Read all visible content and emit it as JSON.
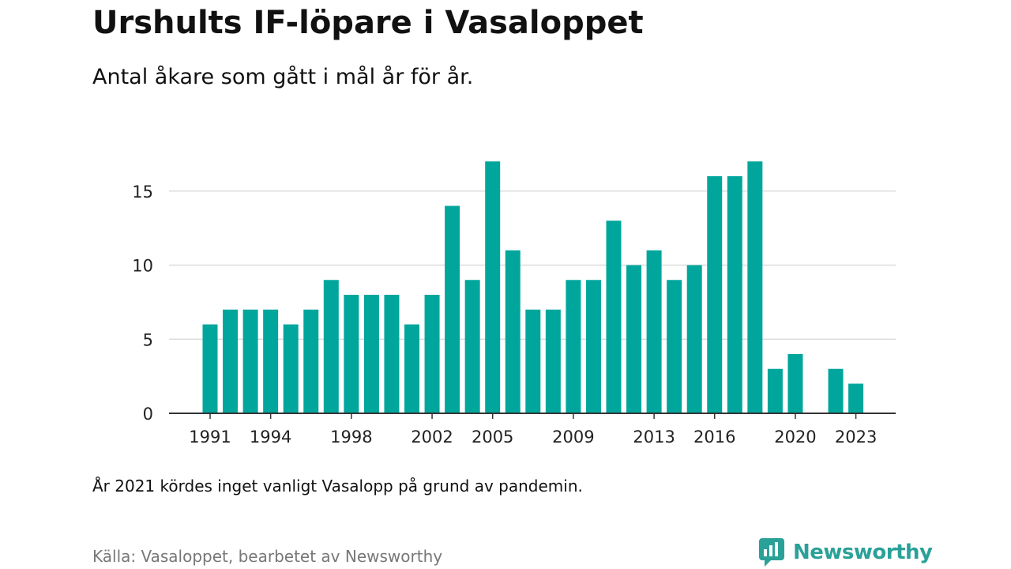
{
  "title": "Urshults IF-löpare i Vasaloppet",
  "subtitle": "Antal åkare som gått i mål år för år.",
  "note": "År 2021 kördes inget vanligt Vasalopp på grund av pandemin.",
  "source": "Källa: Vasaloppet, bearbetet av Newsworthy",
  "brand": {
    "name": "Newsworthy",
    "color": "#2aa198",
    "icon": "newsworthy-logo-icon"
  },
  "colors": {
    "bar": "#00a69c",
    "grid": "#dddddd",
    "axis": "#333333"
  },
  "chart_data": {
    "type": "bar",
    "categories": [
      1991,
      1992,
      1993,
      1994,
      1995,
      1996,
      1997,
      1998,
      1999,
      2000,
      2001,
      2002,
      2003,
      2004,
      2005,
      2006,
      2007,
      2008,
      2009,
      2010,
      2011,
      2012,
      2013,
      2014,
      2015,
      2016,
      2017,
      2018,
      2019,
      2020,
      2021,
      2022,
      2023
    ],
    "values": [
      6,
      7,
      7,
      7,
      6,
      7,
      9,
      8,
      8,
      8,
      6,
      8,
      14,
      9,
      17,
      11,
      7,
      7,
      9,
      9,
      13,
      10,
      11,
      9,
      10,
      16,
      16,
      17,
      3,
      4,
      0,
      3,
      2
    ],
    "x_tick_labels": [
      "1991",
      "1994",
      "1998",
      "2002",
      "2005",
      "2009",
      "2013",
      "2016",
      "2020",
      "2023"
    ],
    "y_ticks": [
      0,
      5,
      10,
      15
    ],
    "ylim": [
      0,
      17
    ],
    "grid": true,
    "legend": "none"
  }
}
